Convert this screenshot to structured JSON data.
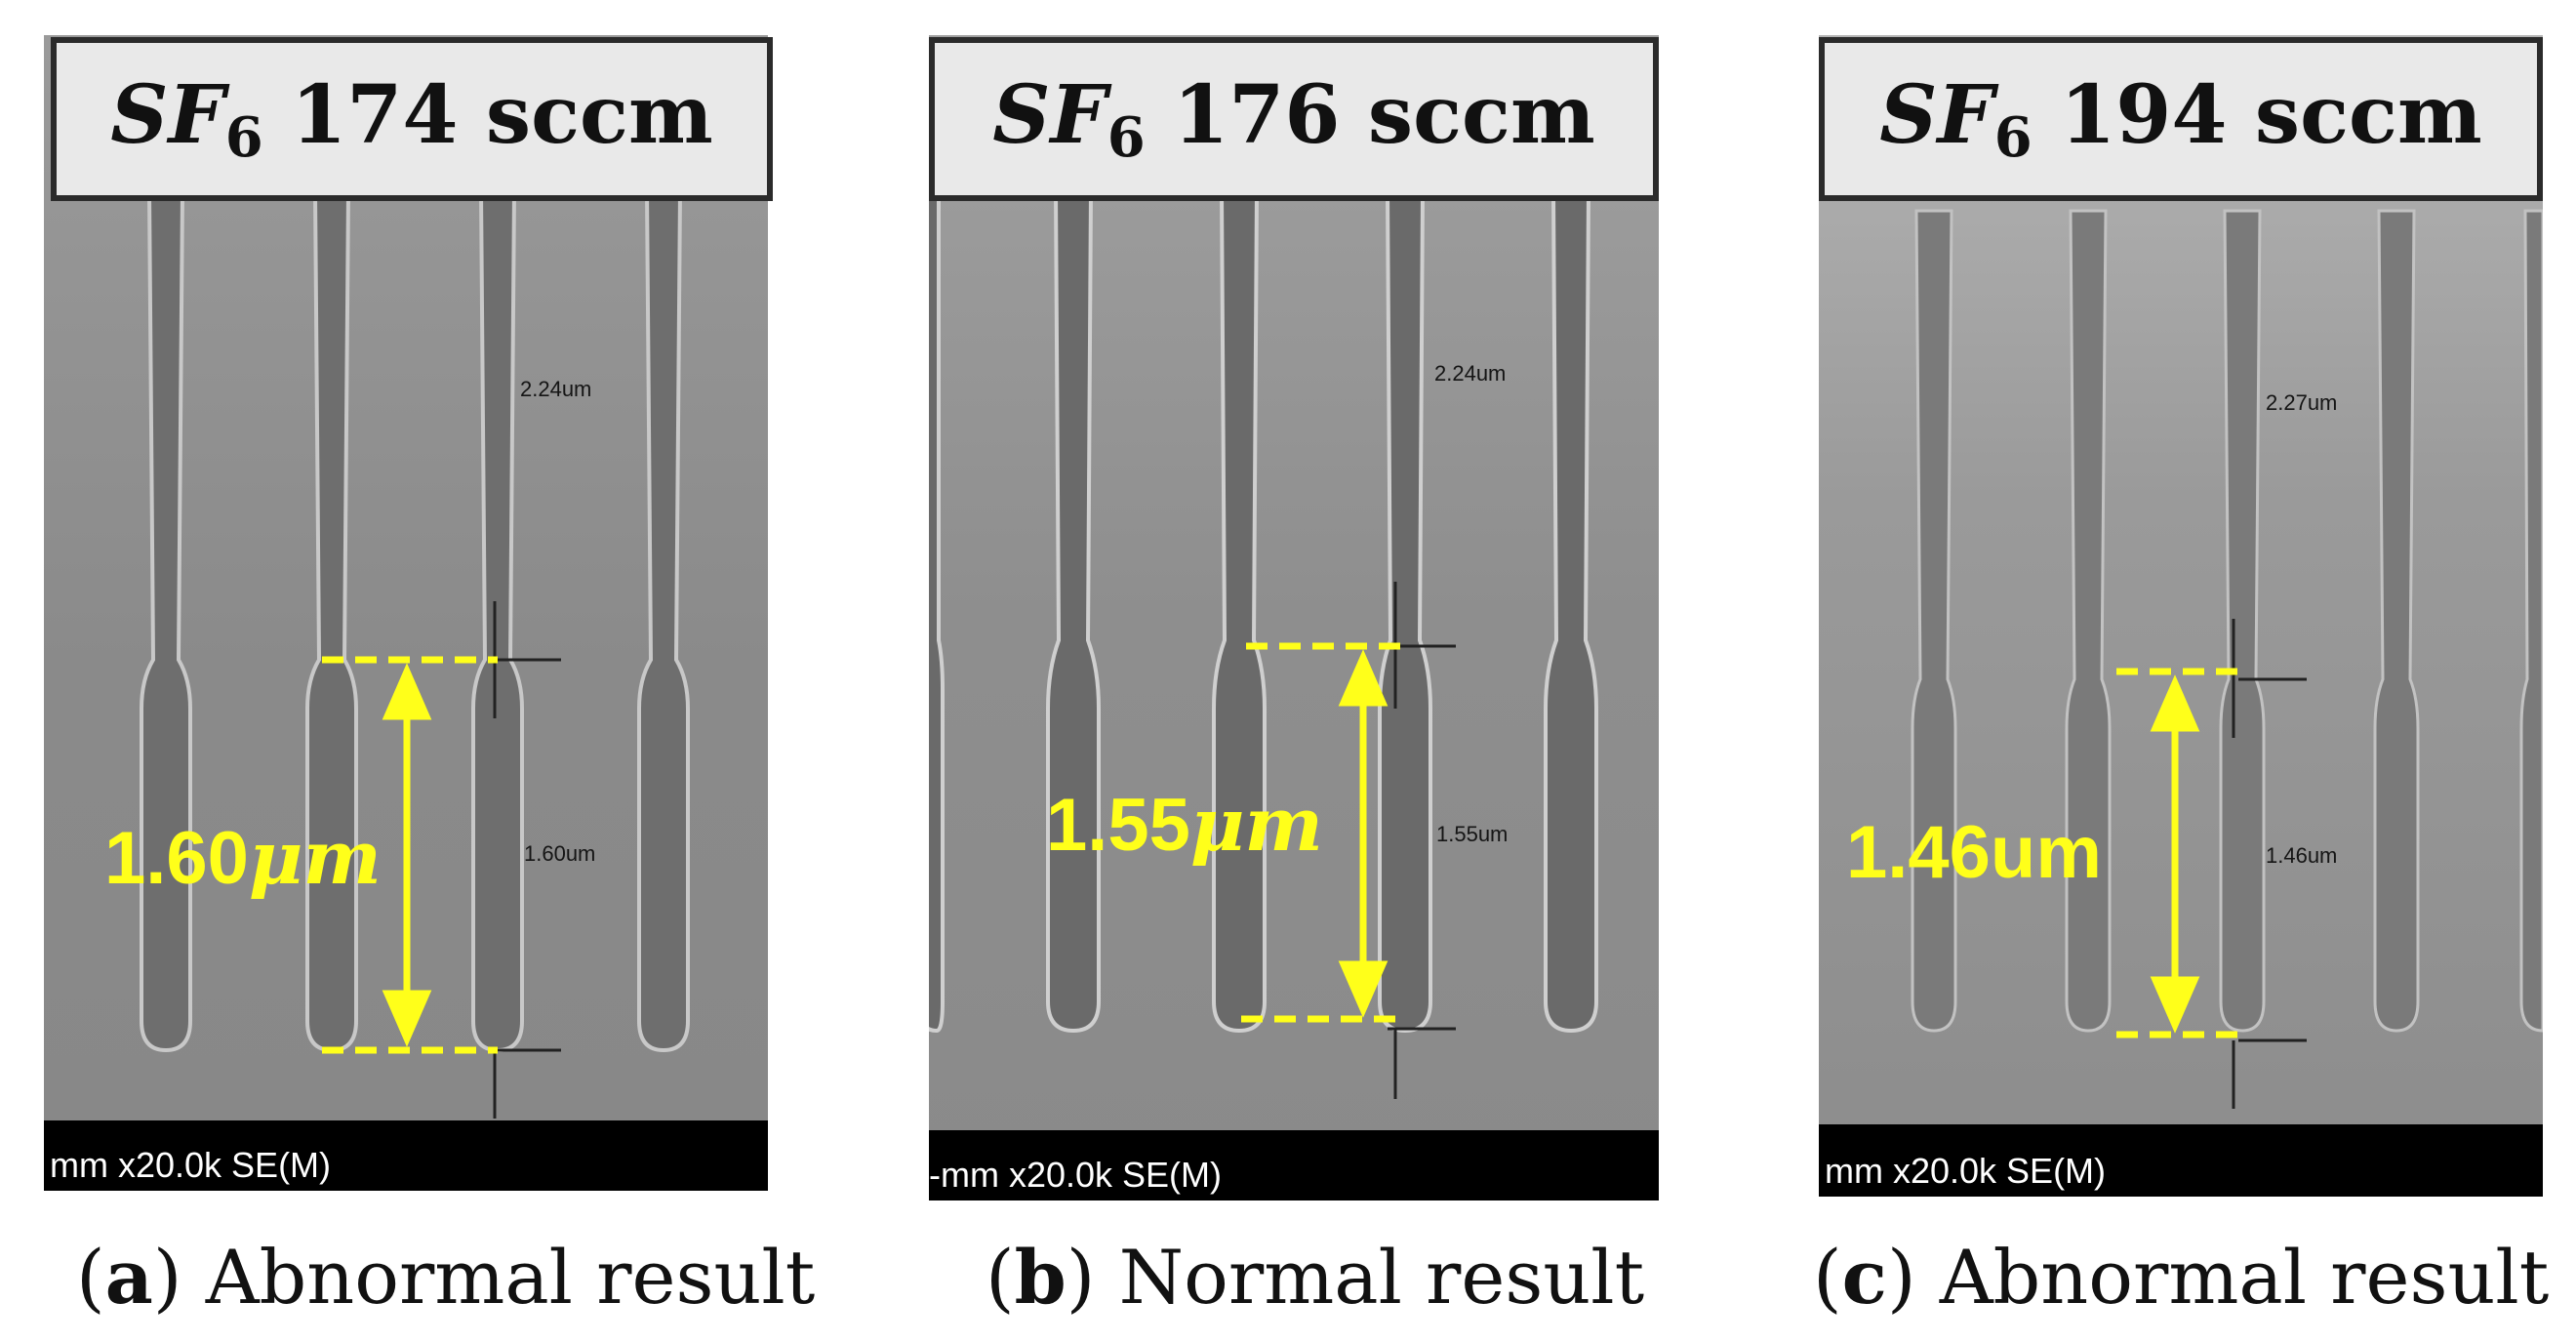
{
  "panels": [
    {
      "gas_symbol": "SF",
      "gas_subscript": "6",
      "flow": "174 sccm",
      "depth_label": "1.60",
      "depth_unit": "μm",
      "small_top_label": "2.24um",
      "small_depth_label": "1.60um",
      "status_text": "mm x20.0k SE(M)",
      "caption_letter": "a",
      "caption_text": " Abnormal result"
    },
    {
      "gas_symbol": "SF",
      "gas_subscript": "6",
      "flow": "176 sccm",
      "depth_label": "1.55",
      "depth_unit": "μm",
      "small_top_label": "2.24um",
      "small_depth_label": "1.55um",
      "status_text": "-mm x20.0k SE(M)",
      "caption_letter": "b",
      "caption_text": " Normal result"
    },
    {
      "gas_symbol": "SF",
      "gas_subscript": "6",
      "flow": "194 sccm",
      "depth_label": "1.46",
      "depth_unit": "um",
      "small_top_label": "2.27um",
      "small_depth_label": "1.46um",
      "status_text": "mm x20.0k SE(M)",
      "caption_letter": "c",
      "caption_text": " Abnormal result"
    }
  ],
  "colors": {
    "annotation_yellow": "#ffff1a",
    "sem_background": "#8c8c8c",
    "title_box": "#e9e9e9"
  }
}
